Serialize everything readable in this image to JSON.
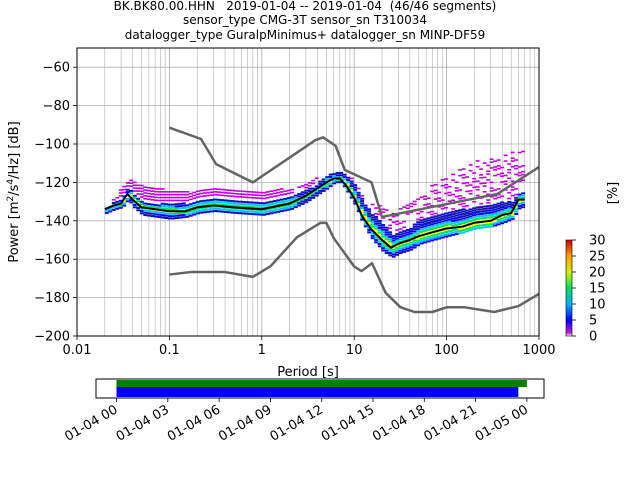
{
  "header": {
    "title_lines": [
      "BK.BK80.00.HHN   2019-01-04 -- 2019-01-04  (46/46 segments)",
      "sensor_type CMG-3T sensor_sn T310034",
      "datalogger_type GuralpMinimus+ datalogger_sn MINP-DF59"
    ]
  },
  "colors": {
    "noise_model": "#646464",
    "mode_line": "#000000",
    "coverage_data": "#008000",
    "coverage_gaps": "#0000ff"
  },
  "chart_data": [
    {
      "type": "heatmap",
      "title": "BK.BK80.00.HHN   2019-01-04 -- 2019-01-04  (46/46 segments)",
      "xlabel": "Period [s]",
      "ylabel_parts": {
        "prefix": "Power [m",
        "sup1": "2",
        "mid": "/s",
        "sup2": "4",
        "suffix": "/Hz] [dB]"
      },
      "x_scale": "log",
      "xlim": [
        0.01,
        1000
      ],
      "ylim": [
        -200,
        -50
      ],
      "x_ticks": [
        0.01,
        0.1,
        1,
        10,
        100,
        1000
      ],
      "x_tick_labels": [
        "0.01",
        "0.1",
        "1",
        "10",
        "100",
        "1000"
      ],
      "y_ticks": [
        -200,
        -180,
        -160,
        -140,
        -120,
        -100,
        -80,
        -60
      ],
      "y_tick_labels": [
        "−200",
        "−180",
        "−160",
        "−140",
        "−120",
        "−100",
        "−80",
        "−60"
      ],
      "grid": true,
      "colorbar": {
        "label": "[%]",
        "range": [
          0,
          30
        ],
        "ticks": [
          0,
          5,
          10,
          15,
          20,
          25,
          30
        ],
        "tick_labels": [
          "0",
          "5",
          "10",
          "15",
          "20",
          "25",
          "30"
        ]
      },
      "series": [
        {
          "name": "NHNM",
          "x": [
            0.1,
            0.22,
            0.32,
            0.8,
            3.8,
            4.6,
            6.3,
            7.9,
            15.4,
            20,
            354.8,
            1000
          ],
          "y": [
            -91.5,
            -97.4,
            -110.5,
            -120,
            -98,
            -96.5,
            -101,
            -113.5,
            -120,
            -138,
            -126,
            -112
          ]
        },
        {
          "name": "NLNM",
          "x": [
            0.1,
            0.17,
            0.4,
            0.8,
            1.24,
            2.4,
            4.3,
            5,
            6,
            10,
            12,
            15.6,
            21.9,
            31.6,
            45,
            70,
            101,
            154,
            328,
            600,
            1000
          ],
          "y": [
            -168,
            -166.7,
            -166.7,
            -169.2,
            -163.7,
            -148.6,
            -141.1,
            -141.1,
            -149,
            -163.8,
            -166.2,
            -162.1,
            -177.5,
            -185,
            -187.5,
            -187.5,
            -185,
            -185,
            -187.5,
            -184.4,
            -178
          ]
        },
        {
          "name": "mode",
          "x": [
            0.02,
            0.025,
            0.03,
            0.035,
            0.04,
            0.05,
            0.07,
            0.1,
            0.15,
            0.2,
            0.3,
            0.5,
            1,
            2,
            3,
            4,
            5,
            6,
            7,
            8,
            10,
            12,
            15,
            20,
            25,
            30,
            40,
            50,
            70,
            100,
            150,
            200,
            300,
            400,
            500,
            600,
            700
          ],
          "y": [
            -134,
            -132,
            -131,
            -126,
            -129,
            -133,
            -134,
            -135,
            -135,
            -133,
            -132,
            -133,
            -134,
            -131,
            -127,
            -123,
            -120,
            -118,
            -118,
            -121,
            -128,
            -137,
            -144,
            -150,
            -154,
            -152,
            -150,
            -148,
            -146,
            -144,
            -143,
            -141,
            -140,
            -137,
            -136,
            -129,
            -129
          ]
        }
      ],
      "density": {
        "x": [
          0.02,
          0.025,
          0.03,
          0.035,
          0.04,
          0.05,
          0.07,
          0.1,
          0.15,
          0.2,
          0.3,
          0.5,
          1,
          2,
          3,
          4,
          5,
          6,
          7,
          8,
          10,
          12,
          15,
          20,
          25,
          30,
          40,
          50,
          70,
          100,
          150,
          200,
          300,
          400,
          500,
          600,
          700
        ],
        "lower": [
          -136,
          -134,
          -133,
          -129,
          -133,
          -137,
          -138,
          -139,
          -138,
          -136,
          -135,
          -136,
          -137,
          -134,
          -130,
          -126,
          -123,
          -120,
          -120,
          -124,
          -132,
          -141,
          -149,
          -156,
          -159,
          -157,
          -155,
          -152,
          -150,
          -148,
          -146,
          -144,
          -143,
          -141,
          -139,
          -133,
          -133
        ],
        "upper": [
          -133,
          -130,
          -128,
          -122,
          -126,
          -130,
          -131,
          -131,
          -131,
          -129,
          -128,
          -129,
          -130,
          -127,
          -124,
          -120,
          -116,
          -115,
          -115,
          -117,
          -122,
          -130,
          -136,
          -142,
          -147,
          -146,
          -143,
          -140,
          -138,
          -136,
          -134,
          -133,
          -132,
          -130,
          -130,
          -125,
          -125
        ],
        "outer_upper": [
          -133,
          -128,
          -122,
          -118,
          -120,
          -122,
          -123,
          -124,
          -125,
          -124,
          -123,
          -124,
          -124,
          -123,
          -120,
          -117,
          -116,
          -115,
          -115,
          -116,
          -120,
          -126,
          -130,
          -133,
          -135,
          -134,
          -130,
          -126,
          -121,
          -117,
          -112,
          -109,
          -108,
          -106,
          -104,
          -102,
          -102
        ]
      }
    },
    {
      "type": "coverage",
      "x_tick_labels": [
        "01-04 00",
        "01-04 03",
        "01-04 06",
        "01-04 09",
        "01-04 12",
        "01-04 15",
        "01-04 18",
        "01-04 21",
        "01-05 00"
      ],
      "x_tick_hours": [
        0,
        3,
        6,
        9,
        12,
        15,
        18,
        21,
        24
      ],
      "xlim_hours": [
        -1.2,
        25
      ],
      "bars": [
        {
          "name": "data",
          "start_hour": 0,
          "end_hour": 24
        },
        {
          "name": "psd segments",
          "start_hour": 0,
          "end_hour": 23.5
        }
      ]
    }
  ]
}
